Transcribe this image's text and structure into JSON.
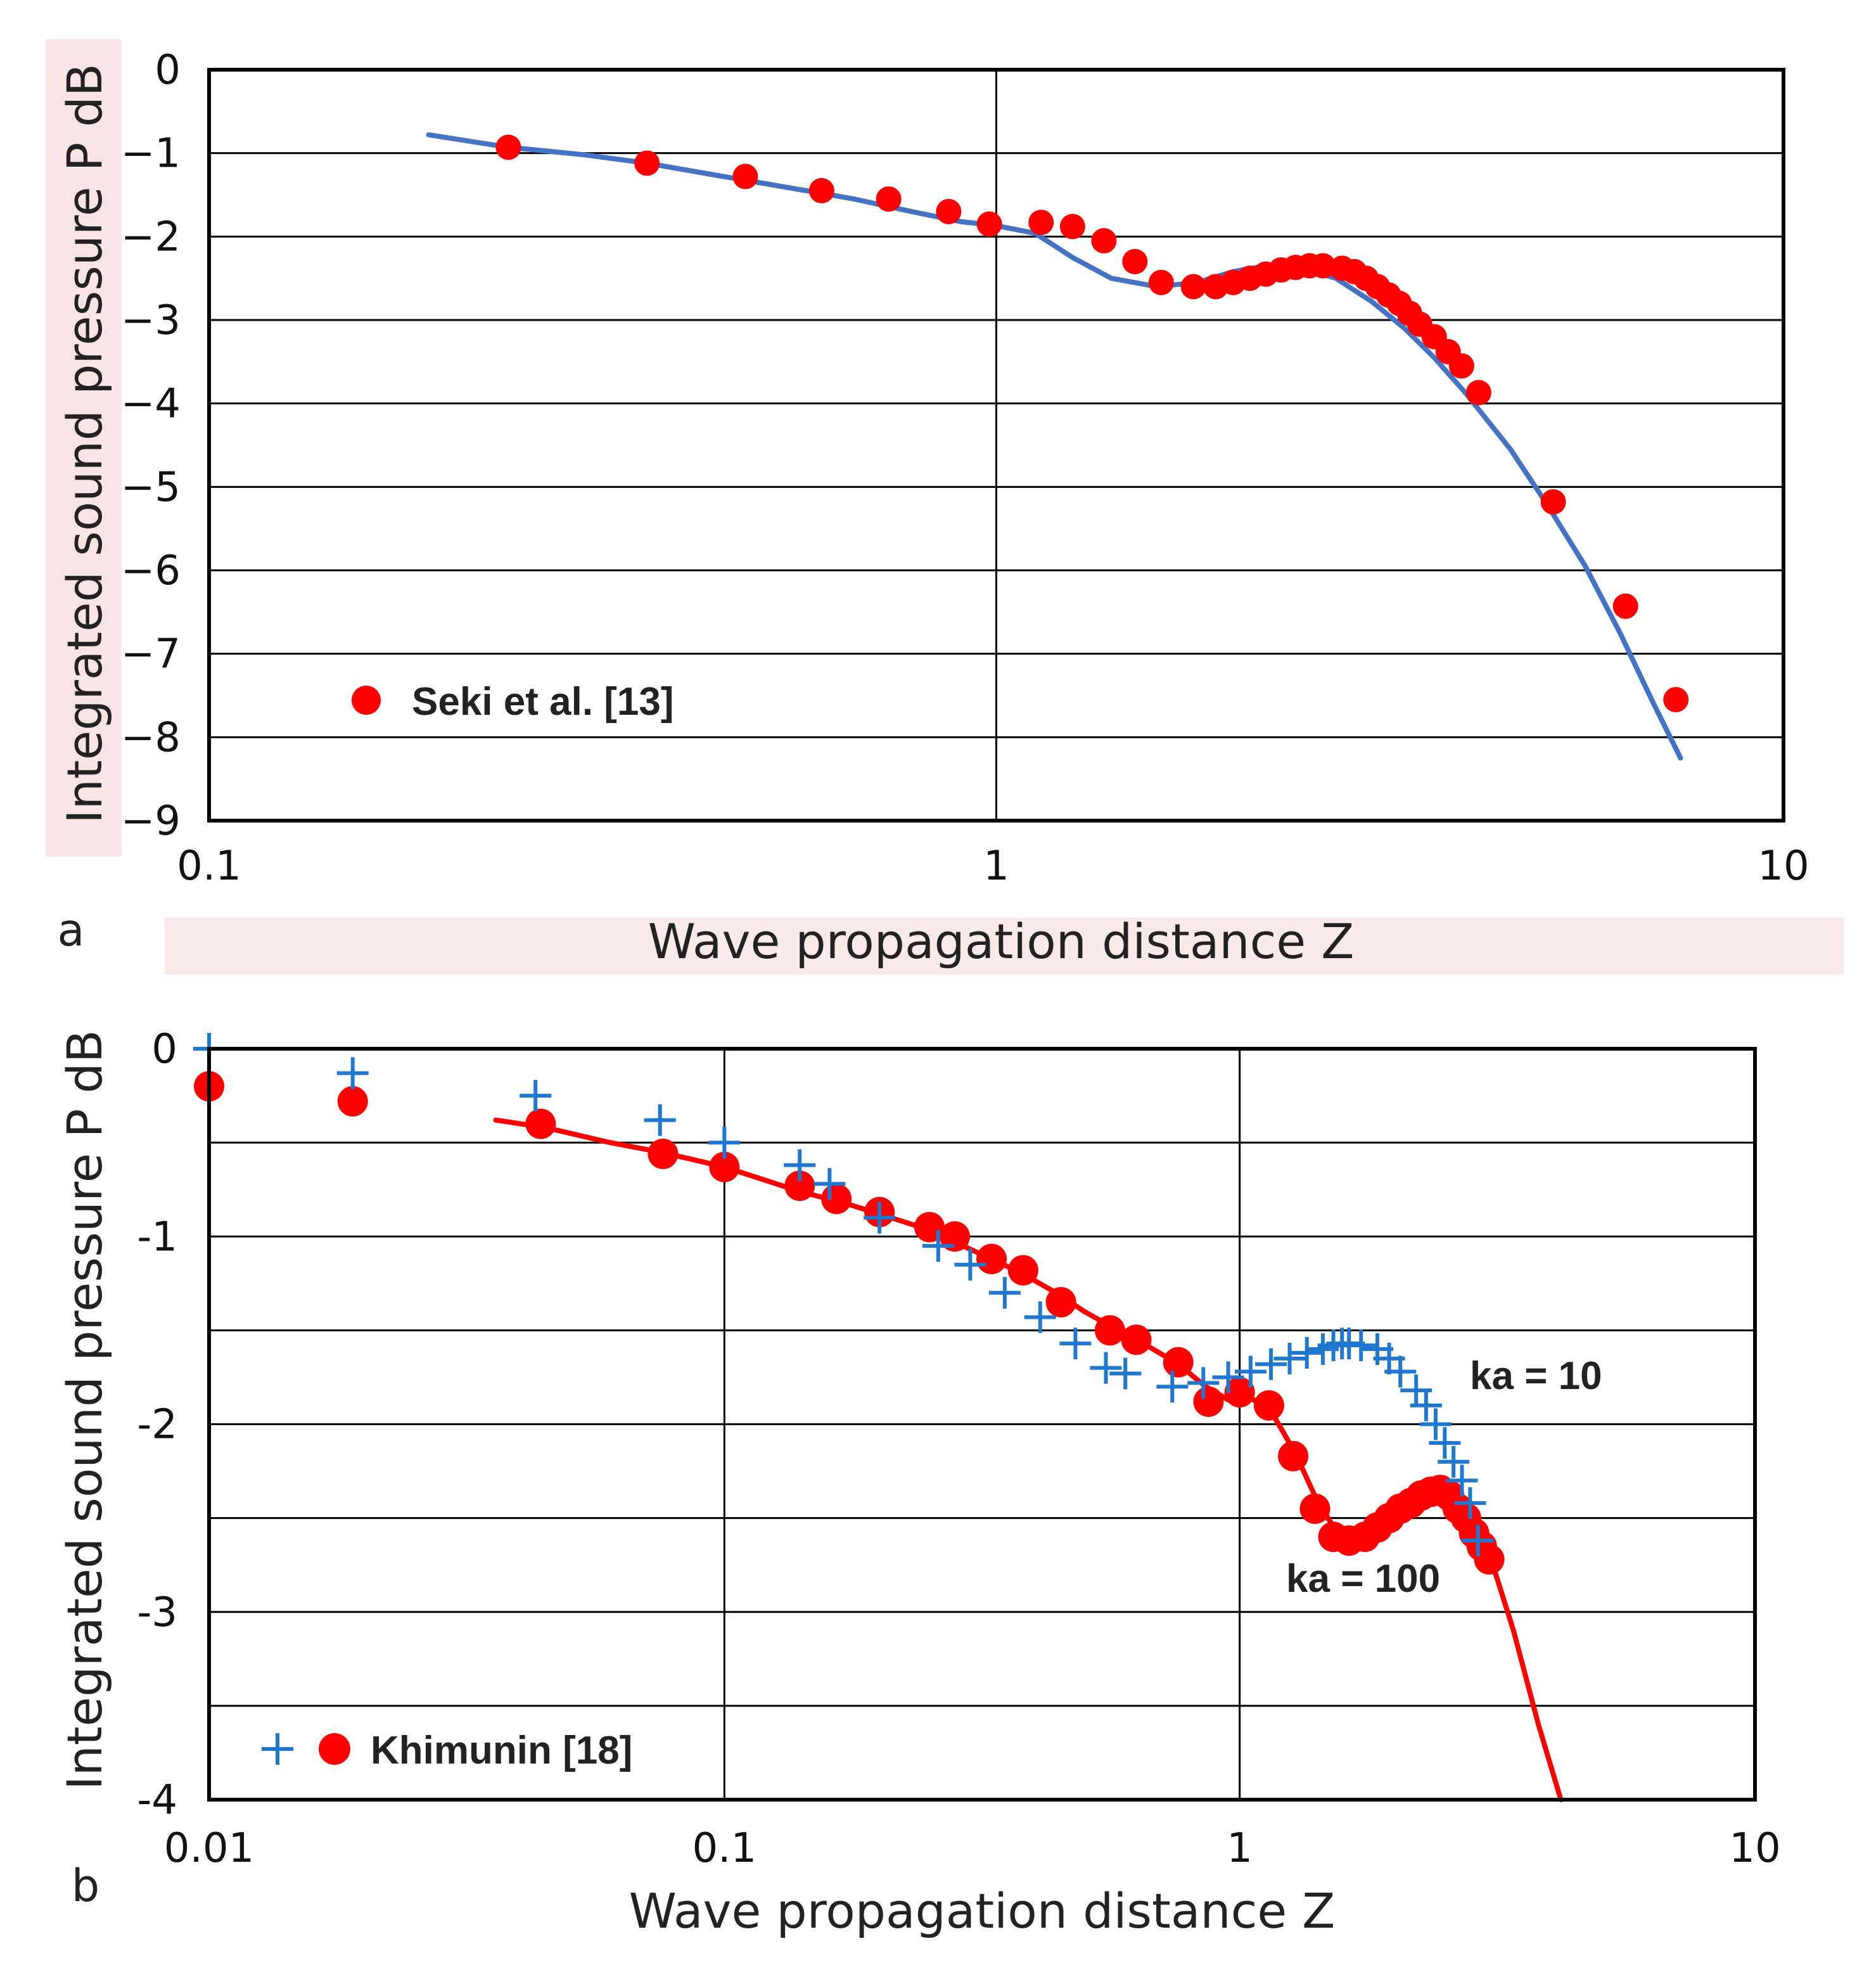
{
  "colors": {
    "red": "#ff0000",
    "blue_line": "#4472c4",
    "blue_plus": "#1f77d0",
    "grid": "#000000",
    "label_bg": "#f8e4e4"
  },
  "chart_data": [
    {
      "panel": "a",
      "type": "scatter",
      "xscale": "log",
      "xlim": [
        0.1,
        10
      ],
      "ylim": [
        -9,
        0
      ],
      "xticks": [
        0.1,
        1,
        10
      ],
      "xtick_labels": [
        "0.1",
        "1",
        "10"
      ],
      "yticks": [
        0,
        -1,
        -2,
        -3,
        -4,
        -5,
        -6,
        -7,
        -8,
        -9
      ],
      "ytick_labels": [
        "0",
        "−1",
        "−2",
        "−3",
        "−4",
        "−5",
        "−6",
        "−7",
        "−8",
        "−9"
      ],
      "xlabel": "Wave propagation distance  Z",
      "ylabel": "Integrated sound pressure  P  dB",
      "legend": [
        {
          "label": "Seki et al. [13]",
          "marker": "circle",
          "color": "#ff0000"
        }
      ],
      "series": [
        {
          "name": "curve",
          "kind": "line",
          "color": "#4472c4",
          "x": [
            0.19,
            0.24,
            0.3,
            0.36,
            0.45,
            0.55,
            0.66,
            0.78,
            0.9,
            1.0,
            1.12,
            1.25,
            1.4,
            1.6,
            1.8,
            2.0,
            2.2,
            2.45,
            2.7,
            3.0,
            3.3,
            3.6,
            3.95,
            4.5,
            5.0,
            5.6,
            6.2,
            6.8,
            7.4
          ],
          "y": [
            -0.78,
            -0.93,
            -1.02,
            -1.12,
            -1.28,
            -1.42,
            -1.55,
            -1.7,
            -1.82,
            -1.87,
            -1.96,
            -2.25,
            -2.5,
            -2.6,
            -2.55,
            -2.42,
            -2.35,
            -2.38,
            -2.5,
            -2.78,
            -3.1,
            -3.45,
            -3.88,
            -4.55,
            -5.2,
            -5.95,
            -6.75,
            -7.55,
            -8.25
          ]
        },
        {
          "name": "Seki et al. [13]",
          "kind": "scatter",
          "marker": "circle",
          "color": "#ff0000",
          "x": [
            0.24,
            0.36,
            0.48,
            0.6,
            0.73,
            0.87,
            0.98,
            1.14,
            1.25,
            1.37,
            1.5,
            1.62,
            1.78,
            1.9,
            2.0,
            2.1,
            2.2,
            2.3,
            2.4,
            2.5,
            2.6,
            2.75,
            2.85,
            2.95,
            3.05,
            3.15,
            3.25,
            3.35,
            3.45,
            3.6,
            3.75,
            3.9,
            4.1,
            5.1,
            6.3,
            7.3
          ],
          "y": [
            -0.93,
            -1.12,
            -1.28,
            -1.45,
            -1.55,
            -1.7,
            -1.85,
            -1.83,
            -1.88,
            -2.05,
            -2.3,
            -2.55,
            -2.6,
            -2.6,
            -2.55,
            -2.5,
            -2.45,
            -2.4,
            -2.37,
            -2.35,
            -2.35,
            -2.38,
            -2.42,
            -2.5,
            -2.6,
            -2.7,
            -2.8,
            -2.92,
            -3.05,
            -3.2,
            -3.38,
            -3.55,
            -3.87,
            -5.18,
            -6.43,
            -7.55
          ]
        }
      ]
    },
    {
      "panel": "b",
      "type": "scatter",
      "xscale": "log",
      "xlim": [
        0.01,
        10
      ],
      "ylim": [
        -4,
        0
      ],
      "xticks": [
        0.01,
        0.1,
        1,
        10
      ],
      "xtick_labels": [
        "0.01",
        "0.1",
        "1",
        "10"
      ],
      "yticks": [
        0,
        -1,
        -2,
        -3,
        -4
      ],
      "ytick_labels": [
        "0",
        "-1",
        "-2",
        "-3",
        "-4"
      ],
      "minor_yticks": [
        -0.5,
        -1.5,
        -2.5,
        -3.5
      ],
      "xlabel": "Wave propagation distance  Z",
      "ylabel": "Integrated sound pressure  P  dB",
      "legend": [
        {
          "label": "Khimunin [18]",
          "marker": "plus+circle",
          "colors": [
            "#1f77d0",
            "#ff0000"
          ]
        }
      ],
      "annotations": [
        {
          "text": "ka = 10",
          "x": 3.6,
          "y": -1.75
        },
        {
          "text": "ka = 100",
          "x": 1.6,
          "y": -2.85
        }
      ],
      "series": [
        {
          "name": "curve",
          "kind": "line",
          "color": "#ff0000",
          "x": [
            0.036,
            0.045,
            0.06,
            0.075,
            0.09,
            0.1,
            0.12,
            0.14,
            0.17,
            0.2,
            0.24,
            0.28,
            0.33,
            0.38,
            0.44,
            0.5,
            0.58,
            0.66,
            0.76,
            0.86,
            0.95,
            1.05,
            1.15,
            1.28,
            1.42,
            1.55,
            1.7,
            1.9,
            2.1,
            2.3,
            2.5,
            2.7,
            2.9,
            3.1,
            3.4,
            3.8,
            4.2
          ],
          "y": [
            -0.38,
            -0.42,
            -0.5,
            -0.55,
            -0.6,
            -0.63,
            -0.7,
            -0.76,
            -0.82,
            -0.88,
            -0.95,
            -1.03,
            -1.12,
            -1.2,
            -1.3,
            -1.4,
            -1.5,
            -1.58,
            -1.68,
            -1.8,
            -1.87,
            -1.86,
            -1.93,
            -2.15,
            -2.42,
            -2.58,
            -2.6,
            -2.55,
            -2.45,
            -2.38,
            -2.36,
            -2.42,
            -2.55,
            -2.75,
            -3.1,
            -3.6,
            -4.0
          ]
        },
        {
          "name": "Khimunin [18] ka = 100",
          "kind": "scatter",
          "marker": "circle",
          "color": "#ff0000",
          "x": [
            0.01,
            0.019,
            0.044,
            0.076,
            0.1,
            0.14,
            0.165,
            0.2,
            0.25,
            0.28,
            0.33,
            0.38,
            0.45,
            0.56,
            0.63,
            0.76,
            0.87,
            1.0,
            1.14,
            1.27,
            1.4,
            1.52,
            1.63,
            1.75,
            1.85,
            1.95,
            2.05,
            2.15,
            2.25,
            2.35,
            2.45,
            2.55,
            2.65,
            2.75,
            2.85,
            2.95,
            3.05
          ],
          "y": [
            -0.2,
            -0.28,
            -0.4,
            -0.56,
            -0.63,
            -0.73,
            -0.8,
            -0.87,
            -0.95,
            -1.0,
            -1.12,
            -1.18,
            -1.35,
            -1.5,
            -1.55,
            -1.67,
            -1.88,
            -1.83,
            -1.9,
            -2.17,
            -2.45,
            -2.6,
            -2.62,
            -2.6,
            -2.55,
            -2.5,
            -2.45,
            -2.42,
            -2.38,
            -2.36,
            -2.35,
            -2.38,
            -2.45,
            -2.5,
            -2.58,
            -2.65,
            -2.72
          ]
        },
        {
          "name": "Khimunin [18] ka = 10",
          "kind": "scatter",
          "marker": "plus",
          "color": "#1f77d0",
          "x": [
            0.01,
            0.019,
            0.043,
            0.075,
            0.1,
            0.14,
            0.16,
            0.2,
            0.26,
            0.3,
            0.35,
            0.41,
            0.48,
            0.55,
            0.6,
            0.74,
            0.85,
            0.95,
            1.05,
            1.15,
            1.25,
            1.35,
            1.45,
            1.52,
            1.58,
            1.63,
            1.72,
            1.85,
            1.95,
            2.05,
            2.2,
            2.3,
            2.4,
            2.5,
            2.6,
            2.7,
            2.8,
            2.9
          ],
          "y": [
            0.0,
            -0.13,
            -0.25,
            -0.38,
            -0.5,
            -0.62,
            -0.72,
            -0.9,
            -1.05,
            -1.15,
            -1.3,
            -1.43,
            -1.57,
            -1.7,
            -1.73,
            -1.8,
            -1.78,
            -1.75,
            -1.72,
            -1.68,
            -1.65,
            -1.62,
            -1.6,
            -1.58,
            -1.57,
            -1.57,
            -1.58,
            -1.6,
            -1.65,
            -1.72,
            -1.82,
            -1.9,
            -2.0,
            -2.1,
            -2.2,
            -2.3,
            -2.42,
            -2.62
          ]
        }
      ]
    }
  ]
}
